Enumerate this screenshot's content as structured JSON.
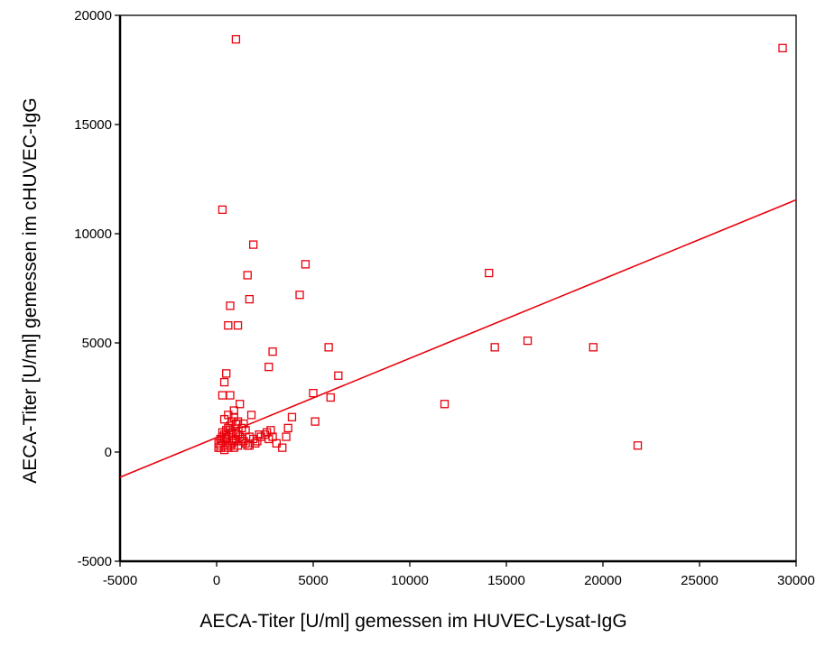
{
  "chart_data": {
    "type": "scatter",
    "title": "",
    "xlabel": "AECA-Titer [U/ml] gemessen im HUVEC-Lysat-IgG",
    "ylabel": "AECA-Titer [U/ml] gemessen im cHUVEC-IgG",
    "xlim": [
      -5000,
      30000
    ],
    "ylim": [
      -5000,
      20000
    ],
    "xticks": [
      "-5000",
      "0",
      "5000",
      "10000",
      "15000",
      "20000",
      "25000",
      "30000"
    ],
    "yticks": [
      "-5000",
      "0",
      "5000",
      "10000",
      "15000",
      "20000"
    ],
    "grid": false,
    "legend": "none",
    "colors": {
      "points": "#e8000b",
      "fit_line": "#e8000b",
      "axes": "#000000"
    },
    "fit_line": {
      "x": [
        -5000,
        30000
      ],
      "y": [
        -1150,
        11550
      ]
    },
    "series": [
      {
        "marker": "open-square",
        "x": [
          1000,
          29300,
          300,
          1900,
          1600,
          1700,
          4600,
          4300,
          700,
          600,
          1100,
          14100,
          5800,
          2900,
          2700,
          16100,
          14400,
          19500,
          6300,
          5000,
          5900,
          11800,
          21800,
          300,
          400,
          500,
          700,
          900,
          1200,
          1400,
          1800,
          800,
          600,
          900,
          1100,
          1300,
          400,
          700,
          1000,
          1500,
          1700,
          2200,
          2600,
          2800,
          2900,
          3100,
          3400,
          2000,
          1000,
          800,
          600,
          500,
          400,
          300,
          200,
          100,
          100,
          200,
          300,
          500,
          700,
          900,
          1100,
          1300,
          1500,
          1700,
          1900,
          2100,
          2300,
          2500,
          2700,
          200,
          400,
          600,
          800,
          1000,
          1200,
          1400,
          1600,
          300,
          500,
          700,
          900,
          1100,
          1300,
          200,
          400,
          600,
          800,
          1000,
          3900,
          3700,
          3600,
          5100
        ],
        "y": [
          18900,
          18500,
          11100,
          9500,
          8100,
          7000,
          8600,
          7200,
          6700,
          5800,
          5800,
          8200,
          4800,
          4600,
          3900,
          5100,
          4800,
          4800,
          3500,
          2700,
          2500,
          2200,
          300,
          2600,
          3200,
          3600,
          2600,
          1900,
          2200,
          1300,
          1700,
          1400,
          1700,
          1600,
          1400,
          1100,
          1500,
          1200,
          1300,
          1000,
          700,
          800,
          900,
          1000,
          700,
          400,
          200,
          400,
          600,
          900,
          1100,
          1000,
          800,
          700,
          600,
          400,
          200,
          300,
          500,
          600,
          300,
          200,
          300,
          500,
          400,
          300,
          600,
          500,
          700,
          800,
          600,
          200,
          100,
          300,
          400,
          600,
          700,
          500,
          300,
          900,
          800,
          1000,
          500,
          800,
          600,
          400,
          700,
          200,
          500,
          900,
          1600,
          1100,
          700,
          1400
        ]
      }
    ]
  }
}
